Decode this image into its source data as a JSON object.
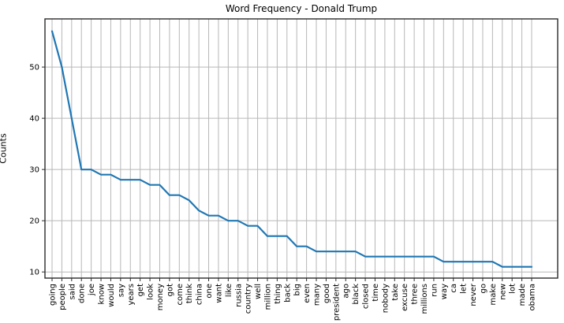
{
  "chart_data": {
    "type": "line",
    "title": "Word Frequency - Donald Trump",
    "xlabel": "",
    "ylabel": "Counts",
    "categories": [
      "going",
      "people",
      "said",
      "done",
      "joe",
      "know",
      "would",
      "say",
      "years",
      "get",
      "look",
      "money",
      "got",
      "come",
      "think",
      "china",
      "one",
      "want",
      "like",
      "russia",
      "country",
      "well",
      "million",
      "thing",
      "back",
      "big",
      "even",
      "many",
      "good",
      "president",
      "ago",
      "black",
      "closed",
      "time",
      "nobody",
      "take",
      "excuse",
      "three",
      "millions",
      "run",
      "way",
      "ca",
      "let",
      "never",
      "go",
      "make",
      "new",
      "lot",
      "made",
      "obama"
    ],
    "values": [
      57,
      50,
      40,
      30,
      30,
      29,
      29,
      28,
      28,
      28,
      27,
      27,
      25,
      25,
      24,
      22,
      21,
      21,
      20,
      20,
      19,
      19,
      17,
      17,
      17,
      15,
      15,
      14,
      14,
      14,
      14,
      14,
      13,
      13,
      13,
      13,
      13,
      13,
      13,
      13,
      12,
      12,
      12,
      12,
      12,
      12,
      11,
      11,
      11,
      11
    ],
    "yticks": [
      10,
      20,
      30,
      40,
      50
    ],
    "ylim": [
      8.8,
      59.4
    ],
    "grid": true,
    "legend": null,
    "line_color": "#1f77b4",
    "line_width": 2.2,
    "x_tick_rotation": 90
  }
}
